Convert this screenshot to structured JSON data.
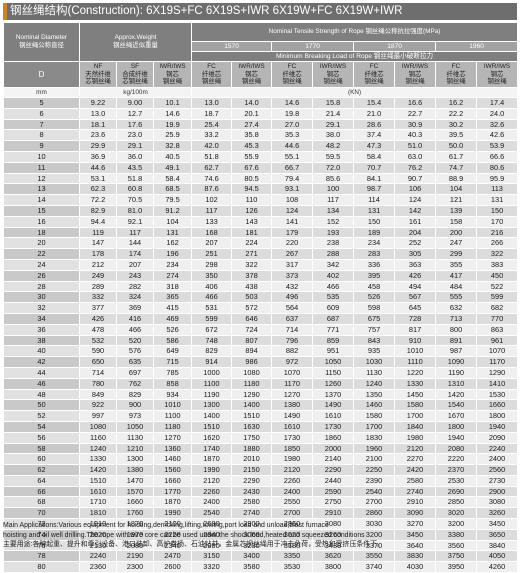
{
  "title": "钢丝绳结构(Construction): 6X19S+FC 6X19S+IWR  6X19W+FC 6X19W+IWR",
  "header": {
    "nominal_diameter": "Nominal Diameter",
    "nominal_diameter_cn": "钢丝绳公称直径",
    "approx_weight": "Approx.Weight",
    "approx_weight_cn": "钢丝绳近似重量",
    "tensile": "Nominal Tensile Strength of Rope  钢丝绳公称抗拉强度(MPa)",
    "grades": [
      "1570",
      "1770",
      "1870",
      "1960"
    ],
    "min_breaking": "Minimum Breaking Load of Rope  钢丝绳最小破断拉力",
    "d_label": "D",
    "weight_cols": [
      "NF\n天然纤维\n芯钢丝绳",
      "SF\n合成纤维\n芯钢丝绳",
      "IWR/IWS\n钢芯\n钢丝绳"
    ],
    "strength_cols": [
      "FC\n纤维芯\n钢丝绳",
      "IWR/IWS\n钢芯\n钢丝绳",
      "FC\n纤维芯\n钢丝绳",
      "IWR/IWS\n钢芯\n钢丝绳",
      "FC\n纤维芯\n钢丝绳",
      "IWR/IWS\n钢芯\n钢丝绳",
      "FC\n纤维芯\n钢丝绳",
      "IWR/IWS\n钢芯\n钢丝绳"
    ],
    "unit_mm": "mm",
    "unit_weight": "kg/100m",
    "unit_kn": "(KN)"
  },
  "rows": [
    [
      "5",
      "9.22",
      "9.00",
      "10.1",
      "13.0",
      "14.0",
      "14.6",
      "15.8",
      "15.4",
      "16.6",
      "16.2",
      "17.4"
    ],
    [
      "6",
      "13.0",
      "12.7",
      "14.6",
      "18.7",
      "20.1",
      "19.8",
      "21.4",
      "21.0",
      "22.7",
      "22.2",
      "24.0"
    ],
    [
      "7",
      "18.1",
      "17.6",
      "19.9",
      "25.4",
      "27.4",
      "27.0",
      "29.1",
      "28.6",
      "30.9",
      "30.2",
      "32.6"
    ],
    [
      "8",
      "23.6",
      "23.0",
      "25.9",
      "33.2",
      "35.8",
      "35.3",
      "38.0",
      "37.4",
      "40.3",
      "39.5",
      "42.6"
    ],
    [
      "9",
      "29.9",
      "29.1",
      "32.8",
      "42.0",
      "45.3",
      "44.6",
      "48.2",
      "47.3",
      "51.0",
      "50.0",
      "53.9"
    ],
    [
      "10",
      "36.9",
      "36.0",
      "40.5",
      "51.8",
      "55.9",
      "55.1",
      "59.5",
      "58.4",
      "63.0",
      "61.7",
      "66.6"
    ],
    [
      "11",
      "44.6",
      "43.5",
      "49.1",
      "62.7",
      "67.6",
      "66.7",
      "72.0",
      "70.7",
      "76.2",
      "74.7",
      "80.6"
    ],
    [
      "12",
      "53.1",
      "51.8",
      "58.4",
      "74.6",
      "80.5",
      "79.4",
      "85.6",
      "84.1",
      "90.7",
      "88.9",
      "95.9"
    ],
    [
      "13",
      "62.3",
      "60.8",
      "68.5",
      "87.6",
      "94.5",
      "93.1",
      "100",
      "98.7",
      "106",
      "104",
      "113"
    ],
    [
      "14",
      "72.2",
      "70.5",
      "79.5",
      "102",
      "110",
      "108",
      "117",
      "114",
      "124",
      "121",
      "131"
    ],
    [
      "15",
      "82.9",
      "81.0",
      "91.2",
      "117",
      "126",
      "124",
      "134",
      "131",
      "142",
      "139",
      "150"
    ],
    [
      "16",
      "94.4",
      "92.1",
      "104",
      "133",
      "143",
      "141",
      "152",
      "150",
      "161",
      "158",
      "170"
    ],
    [
      "18",
      "119",
      "117",
      "131",
      "168",
      "181",
      "179",
      "193",
      "189",
      "204",
      "200",
      "216"
    ],
    [
      "20",
      "147",
      "144",
      "162",
      "207",
      "224",
      "220",
      "238",
      "234",
      "252",
      "247",
      "266"
    ],
    [
      "22",
      "178",
      "174",
      "196",
      "251",
      "271",
      "267",
      "288",
      "283",
      "305",
      "299",
      "322"
    ],
    [
      "24",
      "212",
      "207",
      "234",
      "298",
      "322",
      "317",
      "342",
      "336",
      "363",
      "355",
      "383"
    ],
    [
      "26",
      "249",
      "243",
      "274",
      "350",
      "378",
      "373",
      "402",
      "395",
      "426",
      "417",
      "450"
    ],
    [
      "28",
      "289",
      "282",
      "318",
      "406",
      "438",
      "432",
      "466",
      "458",
      "494",
      "484",
      "522"
    ],
    [
      "30",
      "332",
      "324",
      "365",
      "466",
      "503",
      "496",
      "535",
      "526",
      "567",
      "555",
      "599"
    ],
    [
      "32",
      "377",
      "369",
      "415",
      "531",
      "572",
      "564",
      "609",
      "598",
      "645",
      "632",
      "682"
    ],
    [
      "34",
      "426",
      "416",
      "469",
      "599",
      "646",
      "637",
      "687",
      "675",
      "728",
      "713",
      "770"
    ],
    [
      "36",
      "478",
      "466",
      "526",
      "672",
      "724",
      "714",
      "771",
      "757",
      "817",
      "800",
      "863"
    ],
    [
      "38",
      "532",
      "520",
      "586",
      "748",
      "807",
      "796",
      "859",
      "843",
      "910",
      "891",
      "961"
    ],
    [
      "40",
      "590",
      "576",
      "649",
      "829",
      "894",
      "882",
      "951",
      "935",
      "1010",
      "987",
      "1070"
    ],
    [
      "42",
      "650",
      "635",
      "715",
      "914",
      "986",
      "972",
      "1050",
      "1030",
      "1110",
      "1090",
      "1170"
    ],
    [
      "44",
      "714",
      "697",
      "785",
      "1000",
      "1080",
      "1070",
      "1150",
      "1130",
      "1220",
      "1190",
      "1290"
    ],
    [
      "46",
      "780",
      "762",
      "858",
      "1100",
      "1180",
      "1170",
      "1260",
      "1240",
      "1330",
      "1310",
      "1410"
    ],
    [
      "48",
      "849",
      "829",
      "934",
      "1190",
      "1290",
      "1270",
      "1370",
      "1350",
      "1450",
      "1420",
      "1530"
    ],
    [
      "50",
      "922",
      "900",
      "1010",
      "1300",
      "1400",
      "1380",
      "1490",
      "1460",
      "1580",
      "1540",
      "1660"
    ],
    [
      "52",
      "997",
      "973",
      "1100",
      "1400",
      "1510",
      "1490",
      "1610",
      "1580",
      "1700",
      "1670",
      "1800"
    ],
    [
      "54",
      "1080",
      "1050",
      "1180",
      "1510",
      "1630",
      "1610",
      "1730",
      "1700",
      "1840",
      "1800",
      "1940"
    ],
    [
      "56",
      "1160",
      "1130",
      "1270",
      "1620",
      "1750",
      "1730",
      "1860",
      "1830",
      "1980",
      "1940",
      "2090"
    ],
    [
      "58",
      "1240",
      "1210",
      "1360",
      "1740",
      "1880",
      "1850",
      "2000",
      "1960",
      "2120",
      "2080",
      "2240"
    ],
    [
      "60",
      "1330",
      "1300",
      "1460",
      "1870",
      "2010",
      "1980",
      "2140",
      "2100",
      "2270",
      "2220",
      "2400"
    ],
    [
      "62",
      "1420",
      "1380",
      "1560",
      "1990",
      "2150",
      "2120",
      "2290",
      "2250",
      "2420",
      "2370",
      "2560"
    ],
    [
      "64",
      "1510",
      "1470",
      "1660",
      "2120",
      "2290",
      "2260",
      "2440",
      "2390",
      "2580",
      "2530",
      "2730"
    ],
    [
      "66",
      "1610",
      "1570",
      "1770",
      "2260",
      "2430",
      "2400",
      "2590",
      "2540",
      "2740",
      "2690",
      "2900"
    ],
    [
      "68",
      "1710",
      "1660",
      "1870",
      "2400",
      "2580",
      "2550",
      "2750",
      "2700",
      "2910",
      "2850",
      "3080"
    ],
    [
      "70",
      "1810",
      "1760",
      "1990",
      "2540",
      "2740",
      "2700",
      "2910",
      "2860",
      "3090",
      "3020",
      "3260"
    ],
    [
      "72",
      "1910",
      "1870",
      "2100",
      "2690",
      "2900",
      "2860",
      "3080",
      "3030",
      "3270",
      "3200",
      "3450"
    ],
    [
      "74",
      "2020",
      "1970",
      "2220",
      "2840",
      "3060",
      "3020",
      "3260",
      "3200",
      "3450",
      "3380",
      "3650"
    ],
    [
      "76",
      "2130",
      "2080",
      "2340",
      "2990",
      "3230",
      "3180",
      "3430",
      "3370",
      "3640",
      "3560",
      "3840"
    ],
    [
      "78",
      "2240",
      "2190",
      "2470",
      "3150",
      "3400",
      "3350",
      "3620",
      "3550",
      "3830",
      "3750",
      "4050"
    ],
    [
      "80",
      "2360",
      "2300",
      "2600",
      "3320",
      "3580",
      "3530",
      "3800",
      "3740",
      "4030",
      "3950",
      "4260"
    ]
  ],
  "footer": {
    "line1": "Main Applications:Various equipment for hoisting,derricking,lifting,towing,port load and unload,blast furnace",
    "line2": "hoisting and oil well drilling.The rope with wire core can be used under the shock load,heated and squeezed conditions",
    "line3": "主要用途:各种起重、提升和牵引设备、港口装卸、高炉卷扬、石油钻井，金属芯钢丝绳用于冲击负荷，受热和受挤压条件下。"
  }
}
